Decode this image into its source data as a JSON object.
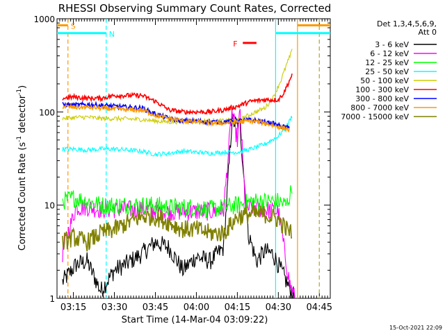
{
  "chart_data": {
    "type": "line",
    "title": "RHESSI Observing Summary Count Rates, Corrected",
    "xlabel": "Start Time (14-Mar-04 03:09:22)",
    "ylabel": "Corrected Count Rate (s",
    "ylabel_sup": "-1",
    "ylabel_mid": " detector",
    "ylabel_sup2": "-1",
    "ylabel_end": ")",
    "y_scale": "log",
    "ylim": [
      1,
      1000
    ],
    "xlim": [
      "03:09",
      "04:49"
    ],
    "x_ticks": [
      "03:15",
      "03:30",
      "03:45",
      "04:00",
      "04:15",
      "04:30",
      "04:45"
    ],
    "y_ticks": [
      "1",
      "10",
      "100",
      "1000"
    ],
    "legend_header": [
      "Det 1,3,4,5,6,9,",
      "Att 0"
    ],
    "legend_position": "right",
    "grid": false,
    "series": [
      {
        "name": "3 - 6 keV",
        "color": "#000000",
        "x": [
          "03:11",
          "03:16",
          "03:20",
          "03:25",
          "03:30",
          "03:35",
          "03:40",
          "03:45",
          "03:50",
          "03:55",
          "04:00",
          "04:05",
          "04:10",
          "04:13",
          "04:16",
          "04:19",
          "04:22",
          "04:25",
          "04:28",
          "04:31",
          "04:34",
          "04:36"
        ],
        "y": [
          1.5,
          2.3,
          2.5,
          1.2,
          2.0,
          2.4,
          3.0,
          4.0,
          3.5,
          2.0,
          2.8,
          2.5,
          3.5,
          80,
          70,
          5,
          2.5,
          3.2,
          3.0,
          2.0,
          1.3,
          1.0
        ]
      },
      {
        "name": "6 - 12 keV",
        "color": "#ff00ff",
        "x": [
          "03:11",
          "03:13",
          "03:16",
          "03:20",
          "03:25",
          "03:30",
          "03:40",
          "03:50",
          "04:00",
          "04:05",
          "04:10",
          "04:13",
          "04:15",
          "04:16",
          "04:17",
          "04:18",
          "04:20",
          "04:25",
          "04:30",
          "04:34",
          "04:36"
        ],
        "y": [
          3.0,
          5.0,
          9.5,
          9.5,
          9.0,
          9.0,
          9.0,
          8.5,
          8.5,
          8.5,
          9.0,
          100,
          50,
          100,
          30,
          9.0,
          9.5,
          9.0,
          8.5,
          1.5,
          1.0
        ]
      },
      {
        "name": "12 - 25 keV",
        "color": "#00ff00",
        "x": [
          "03:11",
          "03:15",
          "03:20",
          "03:25",
          "03:30",
          "03:40",
          "03:45",
          "03:50",
          "04:00",
          "04:05",
          "04:10",
          "04:15",
          "04:20",
          "04:25",
          "04:30",
          "04:33",
          "04:35"
        ],
        "y": [
          11,
          12,
          11,
          10,
          10,
          10,
          10,
          9.5,
          9.5,
          9.0,
          9.5,
          10,
          11,
          11,
          11,
          10,
          15
        ]
      },
      {
        "name": "25 - 50 keV",
        "color": "#00ffff",
        "x": [
          "03:11",
          "03:15",
          "03:20",
          "03:25",
          "03:30",
          "03:35",
          "03:40",
          "03:45",
          "03:50",
          "03:55",
          "04:00",
          "04:05",
          "04:10",
          "04:15",
          "04:20",
          "04:25",
          "04:30",
          "04:33",
          "04:35"
        ],
        "y": [
          40,
          40,
          39,
          40,
          40,
          39,
          38,
          35,
          36,
          38,
          37,
          36,
          37,
          37,
          40,
          45,
          55,
          70,
          90
        ]
      },
      {
        "name": "50 - 100 keV",
        "color": "#cccc00",
        "x": [
          "03:11",
          "03:15",
          "03:20",
          "03:25",
          "03:30",
          "03:35",
          "03:40",
          "03:45",
          "03:50",
          "03:55",
          "04:00",
          "04:05",
          "04:10",
          "04:15",
          "04:20",
          "04:25",
          "04:28",
          "04:31",
          "04:33",
          "04:35"
        ],
        "y": [
          85,
          87,
          88,
          85,
          85,
          84,
          83,
          80,
          78,
          79,
          80,
          80,
          80,
          80,
          95,
          110,
          140,
          220,
          320,
          450
        ]
      },
      {
        "name": "100 - 300 keV",
        "color": "#ff0000",
        "x": [
          "03:11",
          "03:15",
          "03:20",
          "03:25",
          "03:30",
          "03:35",
          "03:40",
          "03:45",
          "03:50",
          "03:55",
          "04:00",
          "04:05",
          "04:10",
          "04:15",
          "04:20",
          "04:25",
          "04:30",
          "04:32",
          "04:35"
        ],
        "y": [
          140,
          145,
          140,
          140,
          150,
          150,
          150,
          130,
          105,
          100,
          100,
          100,
          105,
          115,
          130,
          135,
          135,
          160,
          250
        ]
      },
      {
        "name": "300 - 800 keV",
        "color": "#0000ff",
        "x": [
          "03:11",
          "03:15",
          "03:20",
          "03:25",
          "03:30",
          "03:35",
          "03:40",
          "03:45",
          "03:50",
          "03:55",
          "04:00",
          "04:05",
          "04:10",
          "04:15",
          "04:20",
          "04:25",
          "04:28",
          "04:31",
          "04:33",
          "04:34"
        ],
        "y": [
          120,
          118,
          120,
          118,
          115,
          112,
          110,
          95,
          85,
          80,
          80,
          78,
          78,
          80,
          82,
          78,
          75,
          70,
          68,
          67
        ]
      },
      {
        "name": "800 - 7000 keV",
        "color": "#ff9900",
        "x": [
          "03:11",
          "03:15",
          "03:20",
          "03:25",
          "03:30",
          "03:35",
          "03:40",
          "03:45",
          "03:50",
          "03:55",
          "04:00",
          "04:05",
          "04:10",
          "04:15",
          "04:20",
          "04:25",
          "04:28",
          "04:31",
          "04:33",
          "04:34"
        ],
        "y": [
          115,
          112,
          112,
          110,
          108,
          105,
          105,
          92,
          85,
          80,
          78,
          76,
          76,
          78,
          80,
          76,
          72,
          68,
          66,
          64
        ]
      },
      {
        "name": "7000 - 15000 keV",
        "color": "#808000",
        "x": [
          "03:11",
          "03:15",
          "03:20",
          "03:25",
          "03:30",
          "03:35",
          "03:40",
          "03:45",
          "03:50",
          "03:55",
          "04:00",
          "04:05",
          "04:10",
          "04:15",
          "04:20",
          "04:25",
          "04:30",
          "04:33",
          "04:35"
        ],
        "y": [
          4.0,
          4.5,
          4.0,
          5.0,
          5.5,
          6.5,
          7.5,
          7.5,
          6.5,
          5.5,
          5.5,
          5.0,
          5.0,
          7.5,
          8.0,
          8.0,
          7.0,
          5.5,
          5.0
        ]
      }
    ],
    "annotations": [
      {
        "label": "S",
        "color": "#ff9900",
        "x_start": "03:09",
        "x_end": "03:13",
        "y": 850
      },
      {
        "label": "N",
        "color": "#00ffff",
        "x_start": "03:09",
        "x_end": "03:27",
        "y": 700
      },
      {
        "label": "F",
        "color": "#ff0000",
        "x_start": "04:17",
        "x_end": "04:22",
        "y": 550
      },
      {
        "label": "",
        "color": "#ff9900",
        "x_start": "04:37",
        "x_end": "04:49",
        "y": 850
      },
      {
        "label": "",
        "color": "#00ffff",
        "x_start": "04:29",
        "x_end": "04:49",
        "y": 700
      }
    ],
    "vertical_lines": [
      {
        "x": "03:13",
        "color": "#ff9900",
        "style": "dashed"
      },
      {
        "x": "03:27",
        "color": "#00ffff",
        "style": "dashed"
      },
      {
        "x": "04:29",
        "color": "#00ffff",
        "style": "solid"
      },
      {
        "x": "04:37",
        "color": "#ff9900",
        "style": "solid"
      },
      {
        "x": "04:45",
        "color": "#00ffff",
        "style": "dashed"
      },
      {
        "x": "04:45",
        "color": "#ff9900",
        "style": "dashed"
      }
    ],
    "footer_date": "15-Oct-2021 22:09"
  }
}
